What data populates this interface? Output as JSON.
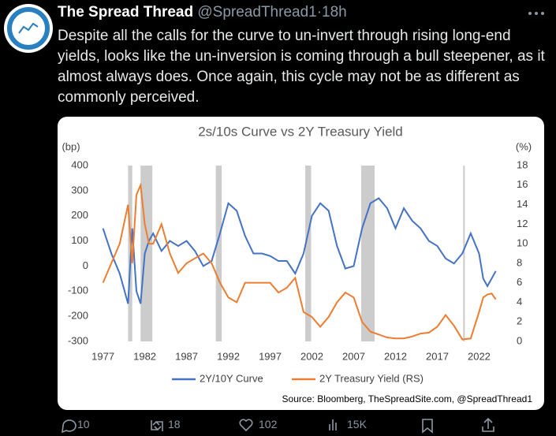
{
  "tweet": {
    "name": "The Spread Thread",
    "handle": "@SpreadThread1",
    "time": "18h",
    "text": "Despite all the calls for the curve to un-invert through rising long-end yields, looks like the un-inversion is coming through a bull steepener, as it almost always does. Once again, this cycle may not be as different as commonly perceived."
  },
  "chart_data": {
    "type": "line",
    "title": "2s/10s Curve vs 2Y Treasury Yield",
    "y_label": "(bp)",
    "y2_label": "(%)",
    "x": [
      1977,
      1978,
      1979,
      1980,
      1980.5,
      1981,
      1981.5,
      1982,
      1982.5,
      1983,
      1984,
      1985,
      1986,
      1987,
      1988,
      1989,
      1990,
      1991,
      1992,
      1993,
      1994,
      1995,
      1996,
      1997,
      1998,
      1999,
      2000,
      2001,
      2002,
      2003,
      2004,
      2005,
      2006,
      2007,
      2008,
      2009,
      2010,
      2011,
      2012,
      2013,
      2014,
      2015,
      2016,
      2017,
      2018,
      2019,
      2020,
      2021,
      2022,
      2022.5,
      2023,
      2023.5,
      2024
    ],
    "xlim": [
      1976,
      2024.6
    ],
    "xticks": [
      1977,
      1982,
      1987,
      1992,
      1997,
      2002,
      2007,
      2012,
      2017,
      2022
    ],
    "ylim": [
      -300,
      400
    ],
    "yticks": [
      -300,
      -200,
      -100,
      0,
      100,
      200,
      300,
      400
    ],
    "y2lim": [
      0,
      18
    ],
    "y2ticks": [
      0,
      2,
      4,
      6,
      8,
      10,
      12,
      14,
      16,
      18
    ],
    "recessions": [
      [
        1980,
        1980.5
      ],
      [
        1981.5,
        1982.9
      ],
      [
        1990.5,
        1991.2
      ],
      [
        2001.2,
        2001.9
      ],
      [
        2007.9,
        2009.5
      ],
      [
        2020.1,
        2020.3
      ]
    ],
    "series": [
      {
        "name": "2Y/10Y Curve",
        "color": "#4472c4",
        "values": [
          150,
          50,
          -30,
          -150,
          150,
          -100,
          -150,
          50,
          100,
          130,
          60,
          100,
          80,
          100,
          60,
          0,
          20,
          130,
          250,
          220,
          120,
          50,
          50,
          40,
          20,
          20,
          -30,
          50,
          200,
          250,
          220,
          80,
          -10,
          0,
          150,
          250,
          270,
          230,
          150,
          230,
          180,
          150,
          100,
          80,
          30,
          10,
          50,
          130,
          50,
          -50,
          -80,
          -50,
          -20
        ]
      },
      {
        "name": "2Y Treasury Yield (RS)",
        "color": "#ed7d31",
        "axis": "y2",
        "values": [
          6,
          8,
          10,
          14,
          8,
          15,
          16,
          12,
          10,
          10,
          12,
          9,
          7,
          8,
          8.5,
          9,
          8,
          6,
          4.5,
          4,
          6,
          6,
          6,
          6,
          5,
          5.5,
          6.5,
          3,
          2.5,
          1.5,
          2.5,
          4,
          5,
          4.5,
          2,
          1,
          0.7,
          0.4,
          0.3,
          0.3,
          0.5,
          0.8,
          0.9,
          1.5,
          2.7,
          1.6,
          0.2,
          0.3,
          3,
          4.5,
          4.8,
          4.9,
          4.3
        ]
      }
    ],
    "source": "Source: Bloomberg, TheSpreadSite.com, @SpreadThread1"
  },
  "actions": {
    "replies": "10",
    "retweets": "18",
    "likes": "102",
    "views": "15K"
  }
}
